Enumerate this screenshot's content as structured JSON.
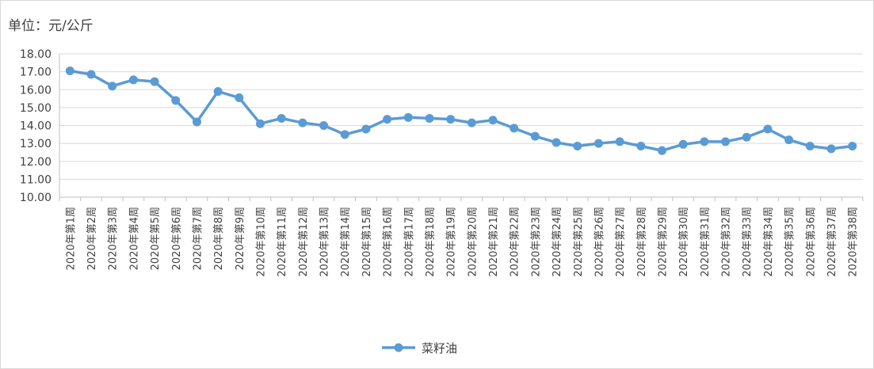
{
  "chart_data": {
    "type": "line",
    "unit_label": "单位：元/公斤",
    "categories": [
      "2020年第1周",
      "2020年第2周",
      "2020年第3周",
      "2020年第4周",
      "2020年第5周",
      "2020年第6周",
      "2020年第7周",
      "2020年第8周",
      "2020年第9周",
      "2020年第10周",
      "2020年第11周",
      "2020年第12周",
      "2020年第13周",
      "2020年第14周",
      "2020年第15周",
      "2020年第16周",
      "2020年第17周",
      "2020年第18周",
      "2020年第19周",
      "2020年第20周",
      "2020年第21周",
      "2020年第22周",
      "2020年第23周",
      "2020年第24周",
      "2020年第25周",
      "2020年第26周",
      "2020年第27周",
      "2020年第28周",
      "2020年第29周",
      "2020年第30周",
      "2020年第31周",
      "2020年第32周",
      "2020年第33周",
      "2020年第34周",
      "2020年第35周",
      "2020年第36周",
      "2020年第37周",
      "2020年第38周"
    ],
    "series": [
      {
        "name": "菜籽油",
        "color": "#5b9bd5",
        "values": [
          17.05,
          16.85,
          16.2,
          16.55,
          16.45,
          15.4,
          14.2,
          15.9,
          15.55,
          14.1,
          14.4,
          14.15,
          14.0,
          13.5,
          13.8,
          14.35,
          14.45,
          14.4,
          14.35,
          14.15,
          14.3,
          13.85,
          13.4,
          13.05,
          12.85,
          13.0,
          13.1,
          12.85,
          12.6,
          12.95,
          13.1,
          13.1,
          13.35,
          13.8,
          13.2,
          12.85,
          12.7,
          12.85
        ]
      }
    ],
    "ylim": [
      10.0,
      18.0
    ],
    "yticks": [
      "10.00",
      "11.00",
      "12.00",
      "13.00",
      "14.00",
      "15.00",
      "16.00",
      "17.00",
      "18.00"
    ],
    "grid": true,
    "legend_position": "bottom"
  }
}
